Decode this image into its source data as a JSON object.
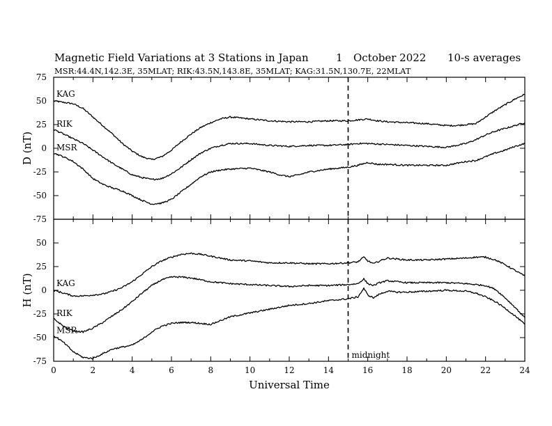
{
  "header": {
    "title": "Magnetic Field Variations at 3 Stations in Japan",
    "day": "1",
    "month_year": "October 2022",
    "averaging": "10-s averages",
    "stations_line": "MSR:44.4N,142.3E, 35MLAT;  RIK:43.5N,143.8E, 35MLAT;  KAG:31.5N,130.7E, 22MLAT"
  },
  "chart_data": [
    {
      "type": "line",
      "panel": "top",
      "ylabel": "D (nT)",
      "ylim": [
        -75,
        75
      ],
      "yticks": [
        -75,
        -50,
        -25,
        0,
        25,
        50,
        75
      ],
      "xlim": [
        0,
        24
      ],
      "x_unit": "hours UT",
      "series": [
        {
          "name": "KAG",
          "x": [
            0,
            1,
            1.5,
            2,
            2.5,
            3,
            3.5,
            4,
            4.5,
            5,
            5.5,
            6,
            6.5,
            7,
            7.5,
            8,
            8.5,
            9,
            9.5,
            10,
            11,
            12,
            13,
            14,
            15,
            15.5,
            16,
            16.5,
            17,
            18,
            19,
            20,
            20.5,
            21,
            21.5,
            22,
            22.5,
            23,
            23.5,
            24
          ],
          "y": [
            50,
            47,
            42,
            33,
            24,
            15,
            5,
            -3,
            -9,
            -12,
            -9,
            -2,
            7,
            15,
            22,
            27,
            31,
            33,
            32,
            31,
            29,
            28,
            28,
            29,
            29,
            30,
            31,
            29,
            28,
            27,
            26,
            24,
            24,
            25,
            26,
            33,
            40,
            46,
            52,
            57
          ]
        },
        {
          "name": "RIK",
          "x": [
            0,
            0.5,
            1,
            1.5,
            2,
            2.5,
            3,
            3.5,
            4,
            4.5,
            5,
            5.5,
            6,
            6.5,
            7,
            7.5,
            8,
            8.5,
            9,
            9.5,
            10,
            11,
            12,
            13,
            14,
            15,
            15.5,
            16,
            17,
            18,
            19,
            20,
            20.5,
            21,
            21.5,
            22,
            22.5,
            23,
            23.5,
            24
          ],
          "y": [
            20,
            15,
            10,
            5,
            -2,
            -9,
            -16,
            -22,
            -28,
            -31,
            -33,
            -32,
            -27,
            -20,
            -12,
            -5,
            0,
            3,
            5,
            5,
            5,
            3,
            2,
            3,
            3,
            4,
            5,
            5,
            4,
            3,
            2,
            1,
            3,
            5,
            9,
            14,
            18,
            21,
            24,
            27
          ]
        },
        {
          "name": "MSR",
          "x": [
            0,
            0.5,
            1,
            1.5,
            2,
            2.5,
            3,
            3.5,
            4,
            4.5,
            5,
            5.5,
            6,
            6.5,
            7,
            7.5,
            8,
            8.5,
            9,
            10,
            11,
            11.5,
            12,
            12.5,
            13,
            14,
            15,
            15.5,
            16,
            16.5,
            17,
            18,
            19,
            20,
            21,
            21.5,
            22,
            22.5,
            23,
            23.5,
            24
          ],
          "y": [
            -5,
            -9,
            -14,
            -22,
            -32,
            -38,
            -42,
            -45,
            -50,
            -55,
            -59,
            -58,
            -54,
            -46,
            -38,
            -30,
            -25,
            -23,
            -22,
            -21,
            -25,
            -28,
            -30,
            -28,
            -25,
            -22,
            -20,
            -18,
            -15,
            -17,
            -17,
            -18,
            -18,
            -18,
            -14,
            -13,
            -9,
            -5,
            -2,
            2,
            5
          ]
        }
      ]
    },
    {
      "type": "line",
      "panel": "bottom",
      "ylabel": "H (nT)",
      "xlabel": "Universal Time",
      "ylim": [
        -75,
        75
      ],
      "yticks": [
        -75,
        -50,
        -25,
        0,
        25,
        50,
        75
      ],
      "xlim": [
        0,
        24
      ],
      "xticks": [
        0,
        2,
        4,
        6,
        8,
        10,
        12,
        14,
        16,
        18,
        20,
        22,
        24
      ],
      "series": [
        {
          "name": "KAG",
          "x": [
            0,
            0.5,
            1,
            1.5,
            2,
            2.5,
            3,
            3.5,
            4,
            4.5,
            5,
            5.5,
            6,
            6.5,
            7,
            7.5,
            8,
            8.5,
            9,
            10,
            11,
            12,
            13,
            14,
            15,
            15.5,
            15.8,
            16,
            16.3,
            16.6,
            17,
            17.5,
            18,
            19,
            20,
            21,
            21.5,
            22,
            22.5,
            23,
            23.5,
            24
          ],
          "y": [
            0,
            -3,
            -6,
            -6,
            -5,
            -4,
            -1,
            3,
            9,
            17,
            25,
            31,
            35,
            38,
            39,
            38,
            36,
            34,
            32,
            31,
            29,
            29,
            28,
            28,
            29,
            30,
            35,
            31,
            28,
            31,
            34,
            33,
            32,
            32,
            33,
            34,
            35,
            35,
            32,
            27,
            21,
            15
          ]
        },
        {
          "name": "RIK",
          "x": [
            0,
            0.5,
            1,
            1.5,
            2,
            2.5,
            3,
            3.5,
            4,
            4.5,
            5,
            5.5,
            6,
            6.5,
            7,
            7.5,
            8,
            8.5,
            9,
            10,
            11,
            12,
            13,
            14,
            15,
            15.5,
            15.8,
            16,
            16.3,
            16.6,
            17,
            17.5,
            18,
            19,
            20,
            21,
            21.5,
            22,
            22.5,
            23,
            23.5,
            24
          ],
          "y": [
            -30,
            -38,
            -43,
            -44,
            -40,
            -34,
            -27,
            -20,
            -12,
            -3,
            5,
            11,
            14,
            14,
            13,
            11,
            9,
            8,
            7,
            6,
            5,
            4,
            5,
            5,
            6,
            7,
            12,
            7,
            5,
            8,
            10,
            9,
            8,
            8,
            8,
            7,
            6,
            5,
            1,
            -8,
            -18,
            -29
          ]
        },
        {
          "name": "MSR",
          "x": [
            0,
            0.5,
            1,
            1.5,
            2,
            2.5,
            3,
            3.5,
            4,
            4.5,
            5,
            5.5,
            6,
            6.5,
            7,
            7.5,
            8,
            8.5,
            9,
            10,
            11,
            12,
            13,
            14,
            15,
            15.5,
            15.8,
            16,
            16.3,
            16.6,
            17,
            17.5,
            18,
            19,
            20,
            21,
            21.5,
            22,
            22.5,
            23,
            23.5,
            24
          ],
          "y": [
            -48,
            -55,
            -65,
            -71,
            -72,
            -67,
            -62,
            -60,
            -58,
            -52,
            -44,
            -38,
            -35,
            -34,
            -34,
            -35,
            -36,
            -32,
            -28,
            -24,
            -20,
            -16,
            -14,
            -11,
            -9,
            -7,
            2,
            -5,
            -8,
            -4,
            -1,
            -2,
            -2,
            -1,
            0,
            -1,
            -3,
            -7,
            -12,
            -19,
            -27,
            -36
          ]
        }
      ]
    }
  ],
  "midnight_marker": {
    "x": 15,
    "label": "midnight"
  }
}
